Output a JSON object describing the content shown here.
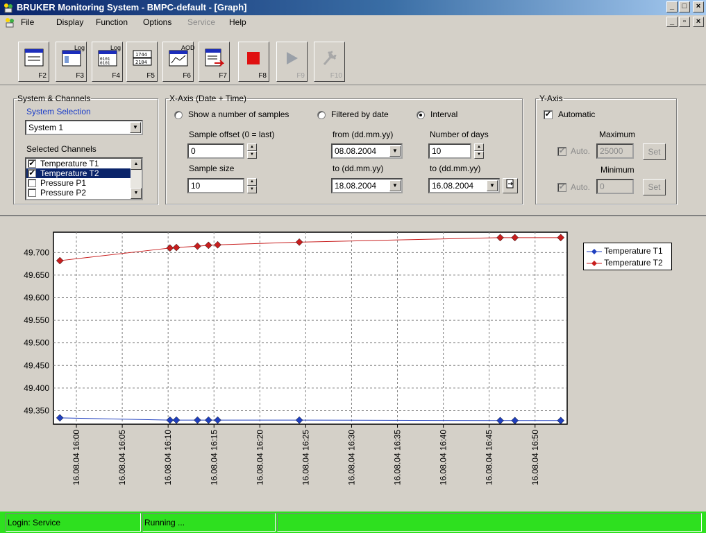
{
  "window": {
    "title": "BRUKER Monitoring System - BMPC-default - [Graph]"
  },
  "menu": {
    "items": [
      {
        "label": "File",
        "enabled": true
      },
      {
        "label": "Display",
        "enabled": true
      },
      {
        "label": "Function",
        "enabled": true
      },
      {
        "label": "Options",
        "enabled": true
      },
      {
        "label": "Service",
        "enabled": false
      },
      {
        "label": "Help",
        "enabled": true
      }
    ]
  },
  "toolbar": {
    "buttons": [
      {
        "key": "F2",
        "icon": "table-view-icon",
        "enabled": true
      },
      {
        "key": "F3",
        "icon": "log-view-icon",
        "badge": "Log",
        "enabled": true
      },
      {
        "key": "F4",
        "icon": "log-digits-icon",
        "badge": "Log",
        "enabled": true
      },
      {
        "key": "F5",
        "icon": "numeric-display-icon",
        "enabled": true
      },
      {
        "key": "F6",
        "icon": "graph-view-icon",
        "badge": "AOD",
        "enabled": true
      },
      {
        "key": "F7",
        "icon": "export-icon",
        "enabled": true
      },
      {
        "key": "F8",
        "icon": "stop-icon",
        "enabled": true
      },
      {
        "key": "F9",
        "icon": "play-icon",
        "enabled": false
      },
      {
        "key": "F10",
        "icon": "tools-icon",
        "enabled": false
      }
    ]
  },
  "system_channels": {
    "legend": "System & Channels",
    "system_selection_label": "System Selection",
    "system_value": "System 1",
    "selected_channels_label": "Selected Channels",
    "channels": [
      {
        "label": "Temperature T1",
        "checked": true,
        "selected": false
      },
      {
        "label": "Temperature T2",
        "checked": true,
        "selected": true
      },
      {
        "label": "Pressure P1",
        "checked": false,
        "selected": false
      },
      {
        "label": "Pressure P2",
        "checked": false,
        "selected": false
      }
    ]
  },
  "xaxis": {
    "legend": "X-Axis (Date + Time)",
    "mode_samples": "Show a number of samples",
    "mode_filtered": "Filtered by date",
    "mode_interval": "Interval",
    "selected_mode": "Interval",
    "sample_offset_label": "Sample offset (0 = last)",
    "sample_offset": "0",
    "sample_size_label": "Sample size",
    "sample_size": "10",
    "from_label": "from (dd.mm.yy)",
    "from_value": "08.08.2004",
    "to_label": "to (dd.mm.yy)",
    "to_value": "18.08.2004",
    "days_label": "Number of days",
    "days_value": "10",
    "to2_label": "to (dd.mm.yy)",
    "to2_value": "16.08.2004"
  },
  "yaxis": {
    "legend": "Y-Axis",
    "automatic_label": "Automatic",
    "automatic_checked": true,
    "maximum_label": "Maximum",
    "max_auto_label": "Auto.",
    "max_value": "25000",
    "max_set_label": "Set",
    "minimum_label": "Minimum",
    "min_auto_label": "Auto.",
    "min_value": "0",
    "min_set_label": "Set"
  },
  "chart_data": {
    "type": "line",
    "ylim": [
      49.32,
      49.745
    ],
    "yticks": [
      "49.700",
      "49.650",
      "49.600",
      "49.550",
      "49.500",
      "49.450",
      "49.400",
      "49.350"
    ],
    "ytick_values": [
      49.7,
      49.65,
      49.6,
      49.55,
      49.5,
      49.45,
      49.4,
      49.35
    ],
    "xlim_minutes": [
      -2.5,
      53.5
    ],
    "xticks": [
      {
        "label": "16.08.04 16:00",
        "minute": 0
      },
      {
        "label": "16.08.04 16:05",
        "minute": 5
      },
      {
        "label": "16.08.04 16:10",
        "minute": 10
      },
      {
        "label": "16.08.04 16:15",
        "minute": 15
      },
      {
        "label": "16.08.04 16:20",
        "minute": 20
      },
      {
        "label": "16.08.04 16:25",
        "minute": 25
      },
      {
        "label": "16.08.04 16:30",
        "minute": 30
      },
      {
        "label": "16.08.04 16:35",
        "minute": 35
      },
      {
        "label": "16.08.04 16:40",
        "minute": 40
      },
      {
        "label": "16.08.04 16:45",
        "minute": 45
      },
      {
        "label": "16.08.04 16:50",
        "minute": 50
      }
    ],
    "grid": true,
    "legend_position": "top-right",
    "series": [
      {
        "name": "Temperature T1",
        "color": "#1f3fbf",
        "marker": "diamond",
        "points": [
          [
            -1.8,
            49.334
          ],
          [
            10.2,
            49.329
          ],
          [
            10.9,
            49.329
          ],
          [
            13.2,
            49.329
          ],
          [
            14.4,
            49.329
          ],
          [
            15.4,
            49.329
          ],
          [
            24.3,
            49.329
          ],
          [
            46.2,
            49.328
          ],
          [
            47.8,
            49.328
          ],
          [
            52.8,
            49.328
          ]
        ]
      },
      {
        "name": "Temperature T2",
        "color": "#c81e1e",
        "marker": "diamond",
        "points": [
          [
            -1.8,
            49.682
          ],
          [
            10.2,
            49.71
          ],
          [
            10.9,
            49.711
          ],
          [
            13.2,
            49.714
          ],
          [
            14.4,
            49.716
          ],
          [
            15.4,
            49.717
          ],
          [
            24.3,
            49.723
          ],
          [
            46.2,
            49.733
          ],
          [
            47.8,
            49.733
          ],
          [
            52.8,
            49.733
          ]
        ]
      }
    ]
  },
  "status": {
    "login": "Login: Service",
    "state": "Running ...",
    "bar_color": "#2ee01f"
  }
}
